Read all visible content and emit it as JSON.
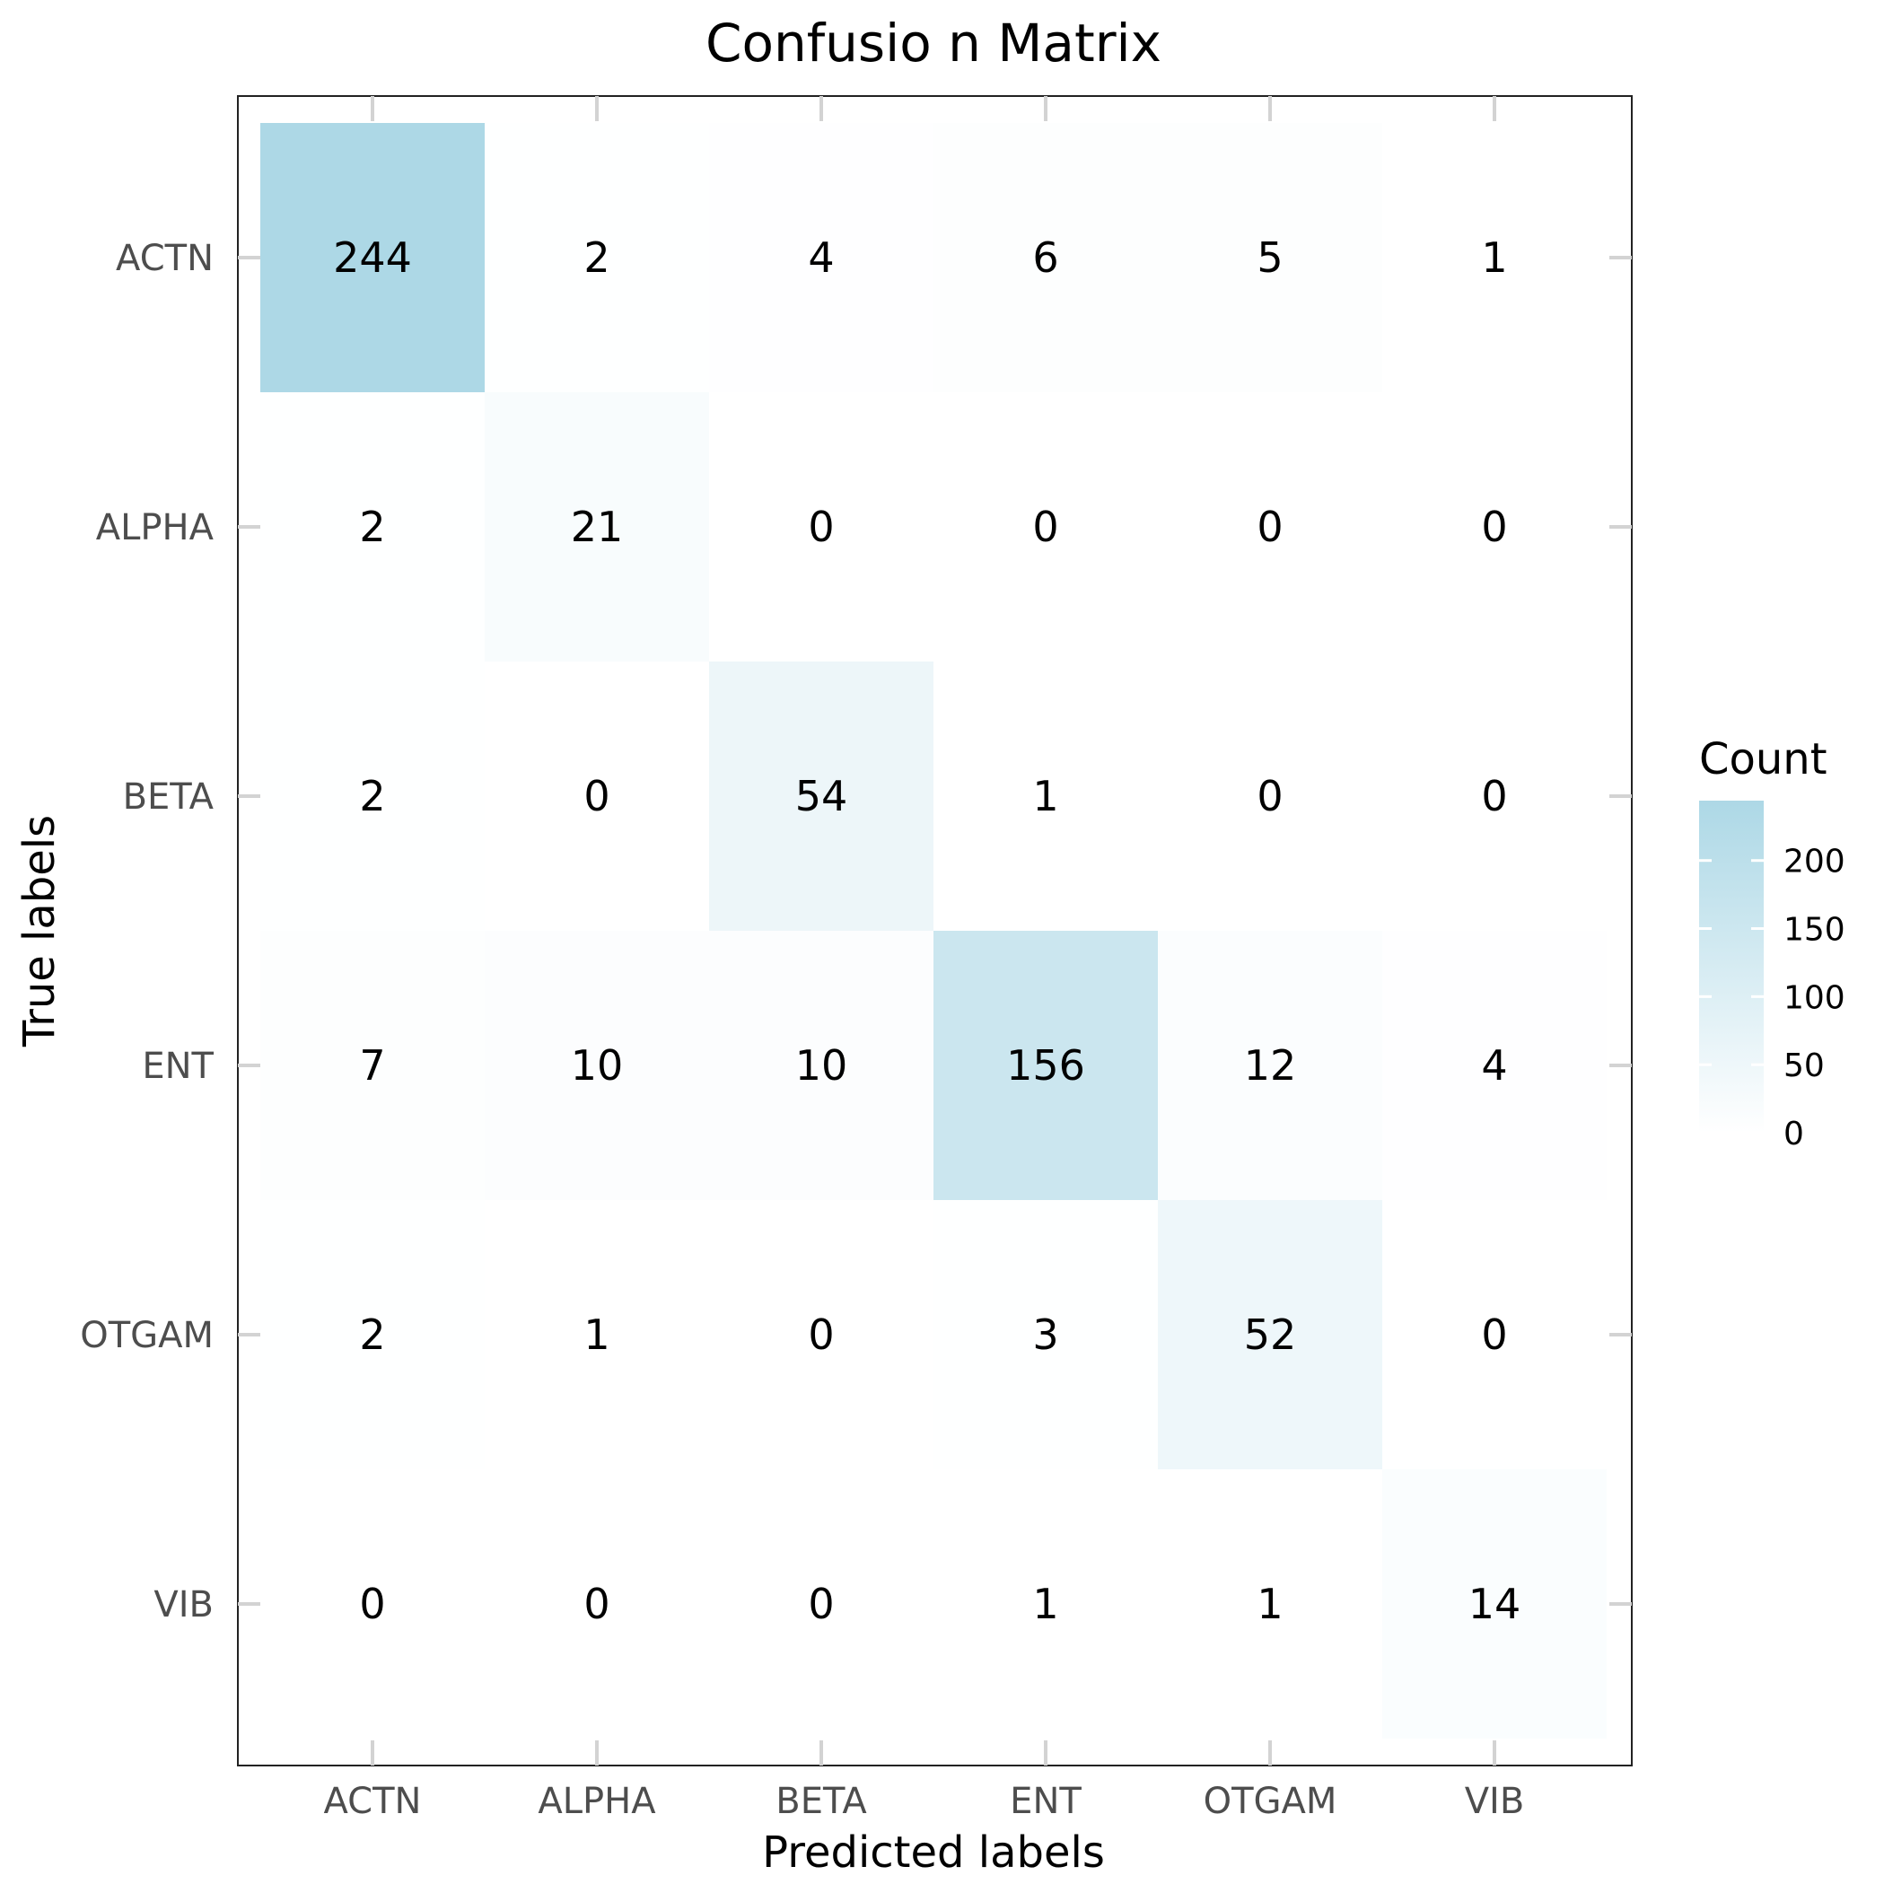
{
  "chart_data": {
    "type": "heatmap",
    "title": "Confusio  n Matrix",
    "xlabel": "Predicted labels",
    "ylabel": "True labels",
    "x_categories": [
      "ACTN",
      "ALPHA",
      "BETA",
      "ENT",
      "OTGAM",
      "VIB"
    ],
    "y_categories": [
      "ACTN",
      "ALPHA",
      "BETA",
      "ENT",
      "OTGAM",
      "VIB"
    ],
    "values": [
      [
        244,
        2,
        4,
        6,
        5,
        1
      ],
      [
        2,
        21,
        0,
        0,
        0,
        0
      ],
      [
        2,
        0,
        54,
        1,
        0,
        0
      ],
      [
        7,
        10,
        10,
        156,
        12,
        4
      ],
      [
        2,
        1,
        0,
        3,
        52,
        0
      ],
      [
        0,
        0,
        0,
        1,
        1,
        14
      ]
    ],
    "legend": {
      "title": "Count",
      "ticks": [
        0,
        50,
        100,
        150,
        200
      ],
      "range": [
        0,
        244
      ],
      "placement": "right"
    },
    "colors": {
      "low": "#ffffff",
      "high": "#add8e6"
    },
    "grid": false
  }
}
